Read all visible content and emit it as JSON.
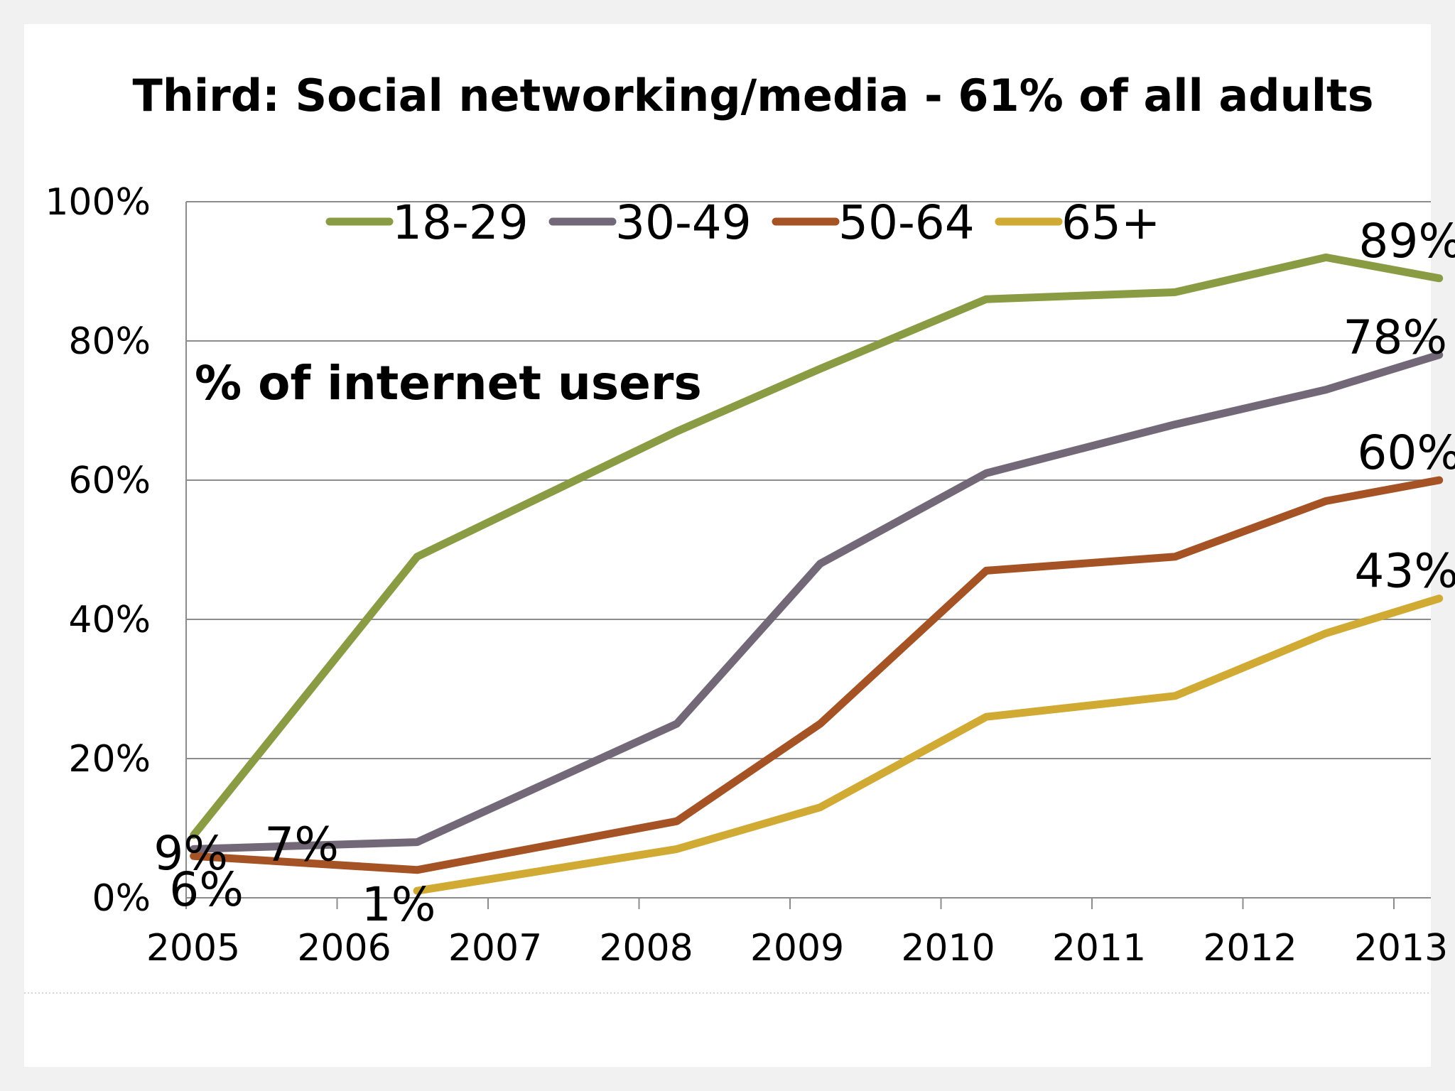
{
  "chart_data": {
    "type": "line",
    "title": "Third: Social networking/media - 61% of all adults",
    "subtitle": "% of internet users",
    "x_ticks": [
      "2005",
      "2006",
      "2007",
      "2008",
      "2009",
      "2010",
      "2011",
      "2012",
      "2013"
    ],
    "y_ticks": [
      "0%",
      "20%",
      "40%",
      "60%",
      "80%",
      "100%"
    ],
    "ylim": [
      0,
      100
    ],
    "xlim": [
      2005,
      2013.33
    ],
    "grid": true,
    "legend_position": "top",
    "series": [
      {
        "name": "18-29",
        "color": "#8a9c43",
        "points": [
          [
            2005.05,
            9
          ],
          [
            2006.53,
            49
          ],
          [
            2008.25,
            67
          ],
          [
            2009.2,
            76
          ],
          [
            2010.3,
            86
          ],
          [
            2011.55,
            87
          ],
          [
            2012.55,
            92
          ],
          [
            2013.3,
            89
          ]
        ]
      },
      {
        "name": "30-49",
        "color": "#736877",
        "points": [
          [
            2005.05,
            7
          ],
          [
            2006.53,
            8
          ],
          [
            2008.25,
            25
          ],
          [
            2009.2,
            48
          ],
          [
            2010.3,
            61
          ],
          [
            2011.55,
            68
          ],
          [
            2012.55,
            73
          ],
          [
            2013.3,
            78
          ]
        ]
      },
      {
        "name": "50-64",
        "color": "#a55325",
        "points": [
          [
            2005.05,
            6
          ],
          [
            2006.53,
            4
          ],
          [
            2008.25,
            11
          ],
          [
            2009.2,
            25
          ],
          [
            2010.3,
            47
          ],
          [
            2011.55,
            49
          ],
          [
            2012.55,
            57
          ],
          [
            2013.3,
            60
          ]
        ]
      },
      {
        "name": "65+",
        "color": "#d0aa33",
        "points": [
          [
            2006.53,
            1
          ],
          [
            2008.25,
            7
          ],
          [
            2009.2,
            13
          ],
          [
            2010.3,
            26
          ],
          [
            2011.55,
            29
          ],
          [
            2012.55,
            38
          ],
          [
            2013.3,
            43
          ]
        ]
      }
    ],
    "annotations": [
      {
        "text": "9%",
        "x": 2005.05,
        "y": 9
      },
      {
        "text": "7%",
        "x": 2005.05,
        "y": 7
      },
      {
        "text": "6%",
        "x": 2005.05,
        "y": 6
      },
      {
        "text": "1%",
        "x": 2006.53,
        "y": 1
      },
      {
        "text": "89%",
        "x": 2013.3,
        "y": 89
      },
      {
        "text": "78%",
        "x": 2013.3,
        "y": 78
      },
      {
        "text": "60%",
        "x": 2013.3,
        "y": 60
      },
      {
        "text": "43%",
        "x": 2013.3,
        "y": 43
      }
    ]
  }
}
